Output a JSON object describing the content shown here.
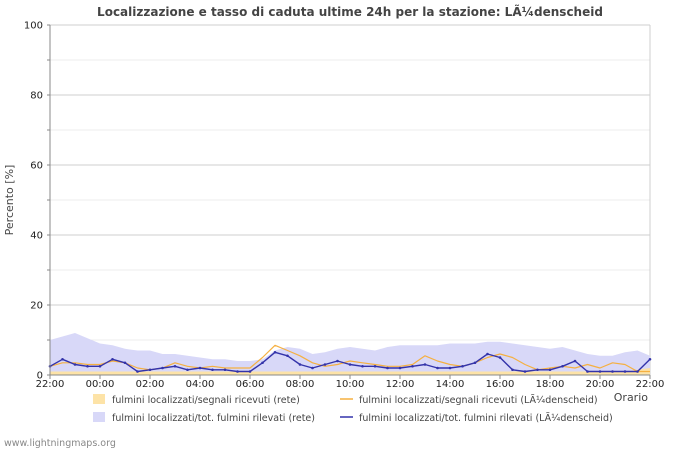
{
  "chart_data": {
    "type": "area",
    "title": "Localizzazione e tasso di caduta ultime 24h per la stazione: LÃ¼denscheid",
    "ylabel": "Percento   [%]",
    "xlabel": "Orario",
    "ylim": [
      0,
      100
    ],
    "y_ticks": [
      "0",
      "20",
      "40",
      "60",
      "80",
      "100"
    ],
    "x_tick_labels": [
      "22:00",
      "00:00",
      "02:00",
      "04:00",
      "06:00",
      "08:00",
      "10:00",
      "12:00",
      "14:00",
      "16:00",
      "18:00",
      "20:00",
      "22:00"
    ],
    "x_hours": [
      0,
      0.5,
      1,
      1.5,
      2,
      2.5,
      3,
      3.5,
      4,
      4.5,
      5,
      5.5,
      6,
      6.5,
      7,
      7.5,
      8,
      8.5,
      9,
      9.5,
      10,
      10.5,
      11,
      11.5,
      12,
      12.5,
      13,
      13.5,
      14,
      14.5,
      15,
      15.5,
      16,
      16.5,
      17,
      17.5,
      18,
      18.5,
      19,
      19.5,
      20,
      20.5,
      21,
      21.5,
      22,
      22.5,
      23,
      23.5,
      24
    ],
    "series": [
      {
        "name": "fulmini localizzati/segnali ricevuti (rete)",
        "style": "area",
        "color": "#fde3a7",
        "values": [
          1,
          1,
          1,
          1,
          1,
          1,
          1,
          1,
          1,
          1,
          1,
          1,
          1,
          1,
          1,
          1,
          1,
          1,
          1,
          1,
          1,
          1,
          1,
          1,
          1,
          1,
          1,
          1,
          1,
          1,
          1,
          1,
          1,
          1,
          1,
          1,
          1,
          1,
          1,
          1,
          1,
          1,
          1,
          1,
          1,
          1,
          1,
          1.5,
          2
        ]
      },
      {
        "name": "fulmini localizzati/segnali ricevuti (LÃ¼denscheid)",
        "style": "line",
        "color": "#f5b041",
        "values": [
          2.5,
          3.5,
          3.5,
          3,
          3,
          4,
          3.5,
          2,
          1.5,
          2,
          3.5,
          2.5,
          2,
          2.5,
          2,
          2,
          2,
          5,
          8.5,
          7,
          5.5,
          3.5,
          2.5,
          3,
          4,
          3.5,
          3,
          2.5,
          2.5,
          3,
          5.5,
          4,
          3,
          2.5,
          3.5,
          5,
          6,
          5,
          3,
          1.5,
          2,
          2.5,
          2,
          3,
          2,
          3.5,
          3,
          1,
          1
        ]
      },
      {
        "name": "fulmini localizzati/tot. fulmini rilevati (rete)",
        "style": "area",
        "color": "#d8d8f8",
        "values": [
          10,
          11,
          12,
          10.5,
          9,
          8.5,
          7.5,
          7,
          7,
          6,
          6,
          5.5,
          5,
          4.5,
          4.5,
          4,
          4,
          4.5,
          7,
          8,
          7.5,
          6,
          6.5,
          7.5,
          8,
          7.5,
          7,
          8,
          8.5,
          8.5,
          8.5,
          8.5,
          9,
          9,
          9,
          9.5,
          9.5,
          9,
          8.5,
          8,
          7.5,
          8,
          7,
          6,
          5.5,
          5.5,
          6.5,
          7,
          5.5
        ]
      },
      {
        "name": "fulmini localizzati/tot. fulmini rilevati (LÃ¼denscheid)",
        "style": "line",
        "color": "#3333aa",
        "values": [
          2.5,
          4.5,
          3,
          2.5,
          2.5,
          4.5,
          3.5,
          1,
          1.5,
          2,
          2.5,
          1.5,
          2,
          1.5,
          1.5,
          1,
          1,
          3.5,
          6.5,
          5.5,
          3,
          2,
          3,
          4,
          3,
          2.5,
          2.5,
          2,
          2,
          2.5,
          3,
          2,
          2,
          2.5,
          3.5,
          6,
          5,
          1.5,
          1,
          1.5,
          1.5,
          2.5,
          4,
          1,
          1,
          1,
          1,
          1,
          4.5
        ]
      }
    ]
  },
  "footer": "www.lightningmaps.org"
}
